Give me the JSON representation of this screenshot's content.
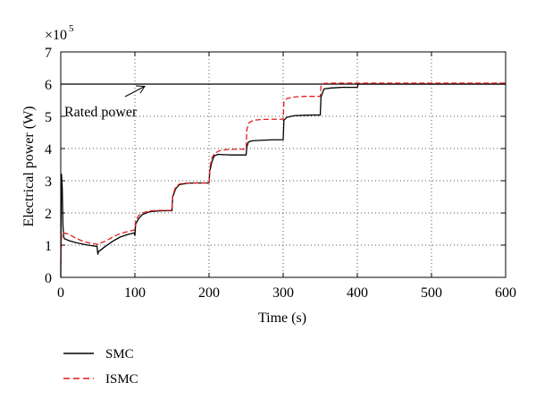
{
  "chart_data": {
    "type": "line",
    "xlabel": "Time (s)",
    "ylabel": "Electrical power (W)",
    "y_multiplier": "×10",
    "y_multiplier_exp": "5",
    "xlim": [
      0,
      600
    ],
    "ylim": [
      0,
      7
    ],
    "xticks": [
      0,
      100,
      200,
      300,
      400,
      500,
      600
    ],
    "yticks": [
      0,
      1,
      2,
      3,
      4,
      5,
      6,
      7
    ],
    "grid": true,
    "grid_style": "dotted",
    "legend_position": "bottom-left, below plot",
    "annotation": {
      "text": "Rated power",
      "x": 120,
      "y": 6.0
    },
    "series": [
      {
        "name": "SMC",
        "color": "#000000",
        "style": "solid",
        "x": [
          0,
          0.5,
          1,
          2,
          3,
          4,
          5,
          10,
          20,
          30,
          40,
          49,
          50,
          51,
          55,
          60,
          70,
          80,
          90,
          99,
          100,
          101,
          105,
          110,
          120,
          130,
          140,
          149,
          150,
          151,
          155,
          160,
          170,
          180,
          190,
          199,
          200,
          201,
          204,
          207,
          212,
          220,
          230,
          240,
          249,
          250,
          251,
          253,
          258,
          265,
          275,
          285,
          295,
          299,
          300,
          301,
          305,
          315,
          325,
          340,
          349,
          350,
          351,
          355,
          365,
          380,
          399,
          400,
          401,
          450,
          500,
          550,
          600
        ],
        "y": [
          0,
          2.0,
          3.2,
          2.8,
          1.6,
          1.25,
          1.2,
          1.15,
          1.08,
          1.03,
          0.99,
          0.96,
          0.72,
          0.8,
          0.87,
          0.96,
          1.12,
          1.25,
          1.33,
          1.38,
          1.3,
          1.65,
          1.82,
          1.95,
          2.04,
          2.06,
          2.07,
          2.07,
          2.07,
          2.5,
          2.75,
          2.88,
          2.92,
          2.93,
          2.93,
          2.93,
          2.93,
          3.3,
          3.6,
          3.77,
          3.82,
          3.81,
          3.8,
          3.8,
          3.8,
          3.8,
          4.05,
          4.2,
          4.24,
          4.25,
          4.26,
          4.27,
          4.27,
          4.27,
          4.27,
          4.88,
          4.97,
          5.02,
          5.03,
          5.04,
          5.04,
          5.04,
          5.6,
          5.85,
          5.88,
          5.9,
          5.9,
          5.9,
          6.0,
          6.0,
          6.0,
          6.0,
          6.0
        ]
      },
      {
        "name": "ISMC",
        "color": "#e31a1c",
        "style": "dashed",
        "x": [
          0,
          1,
          2,
          3,
          5,
          10,
          20,
          30,
          40,
          49,
          50,
          51,
          55,
          60,
          70,
          80,
          90,
          99,
          100,
          101,
          105,
          110,
          120,
          130,
          140,
          149,
          150,
          151,
          155,
          160,
          170,
          180,
          190,
          199,
          200,
          201,
          204,
          208,
          215,
          225,
          235,
          249,
          250,
          251,
          254,
          260,
          270,
          280,
          290,
          299,
          300,
          301,
          305,
          315,
          330,
          349,
          350,
          351,
          355,
          370,
          399,
          400,
          401,
          450,
          500,
          550,
          600
        ],
        "y": [
          0.4,
          1.25,
          1.37,
          1.38,
          1.37,
          1.35,
          1.22,
          1.12,
          1.06,
          1.03,
          1.02,
          1.05,
          1.08,
          1.12,
          1.25,
          1.36,
          1.42,
          1.47,
          1.5,
          1.75,
          1.92,
          2.0,
          2.06,
          2.08,
          2.08,
          2.08,
          2.08,
          2.55,
          2.8,
          2.9,
          2.93,
          2.93,
          2.93,
          2.93,
          2.93,
          3.4,
          3.72,
          3.86,
          3.94,
          3.97,
          3.98,
          3.98,
          3.98,
          4.6,
          4.8,
          4.88,
          4.9,
          4.91,
          4.91,
          4.91,
          4.91,
          5.45,
          5.55,
          5.6,
          5.62,
          5.62,
          5.62,
          5.96,
          6.02,
          6.03,
          6.03,
          6.03,
          6.03,
          6.03,
          6.03,
          6.03,
          6.03
        ]
      },
      {
        "name": "",
        "color": "#000000",
        "style": "solid",
        "x": [
          0,
          600
        ],
        "y": [
          6.0,
          6.0
        ]
      }
    ]
  }
}
